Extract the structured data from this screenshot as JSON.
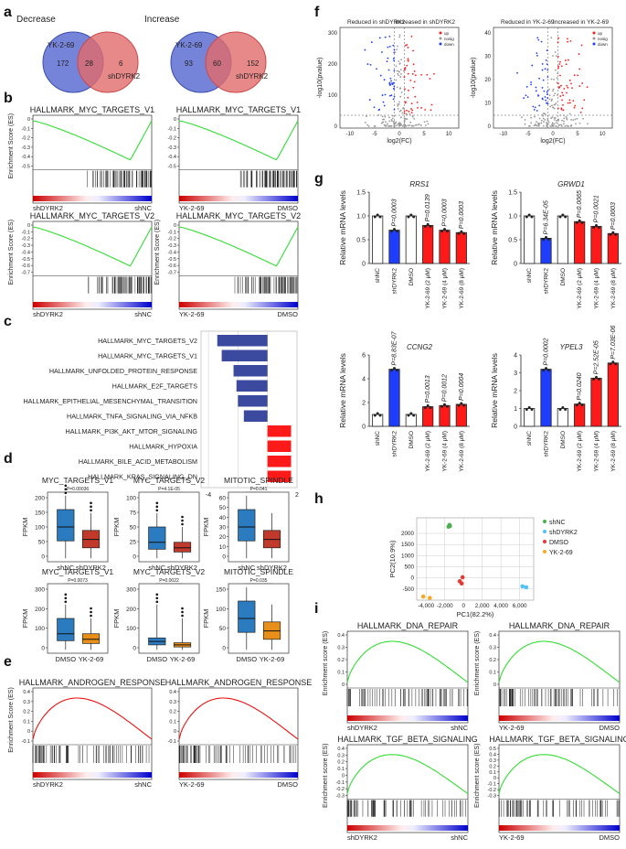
{
  "panel_labels": [
    "a",
    "b",
    "c",
    "d",
    "e",
    "f",
    "g",
    "h",
    "i"
  ],
  "venn": [
    {
      "title": "Decrease",
      "left_label": "YK-2-69",
      "right_label": "shDYRK2",
      "left_only": "172",
      "overlap": "28",
      "right_only": "6"
    },
    {
      "title": "Increase",
      "left_label": "YK-2-69",
      "right_label": "shDYRK2",
      "left_only": "93",
      "overlap": "60",
      "right_only": "152"
    }
  ],
  "gsea_b": [
    {
      "title": "HALLMARK_MYC_TARGETS_V1",
      "left": "shDYRK2",
      "right": "shNC",
      "ylabel": "Enrichment Score (ES)",
      "ticks": [
        "0",
        "-0.1",
        "-0.2",
        "-0.3",
        "-0.4",
        "-0.5"
      ]
    },
    {
      "title": "HALLMARK_MYC_TARGETS_V1",
      "left": "YK-2-69",
      "right": "DMSO",
      "ylabel": "",
      "ticks": [
        "0",
        "-0.1",
        "-0.2",
        "-0.3",
        "-0.4",
        "-0.5"
      ]
    },
    {
      "title": "HALLMARK_MYC_TARGETS_V2",
      "left": "shDYRK2",
      "right": "shNC",
      "ylabel": "Enrichment Score (ES)",
      "ticks": [
        "0",
        "-0.1",
        "-0.2",
        "-0.3",
        "-0.4",
        "-0.5",
        "-0.6",
        "-0.7"
      ]
    },
    {
      "title": "HALLMARK_MYC_TARGETS_V2",
      "left": "YK-2-69",
      "right": "DMSO",
      "ylabel": "Enrichment Score (ES)",
      "ticks": [
        "0",
        "-0.1",
        "-0.2",
        "-0.3",
        "-0.4",
        "-0.5",
        "-0.6",
        "-0.7"
      ]
    }
  ],
  "nes_chart": {
    "xlabel": "NES",
    "xticks": [
      "-4",
      "-2",
      "0",
      "2"
    ],
    "bars": [
      {
        "label": "HALLMARK_MYC_TARGETS_V2",
        "value": -3.4
      },
      {
        "label": "HALLMARK_MYC_TARGETS_V1",
        "value": -3.1
      },
      {
        "label": "HALLMARK_UNFOLDED_PROTEIN_RESPONSE",
        "value": -2.3
      },
      {
        "label": "HALLMARK_E2F_TARGETS",
        "value": -2.1
      },
      {
        "label": "HALLMARK_EPITHELIAL_MESENCHYMAL_TRANSITION",
        "value": -2.0
      },
      {
        "label": "HALLMARK_TNFA_SIGNALING_VIA_NFKB",
        "value": -1.6
      },
      {
        "label": "HALLMARK_PI3K_AKT_MTOR_SIGNALING",
        "value": 1.6
      },
      {
        "label": "HALLMARK_HYPOXIA",
        "value": 1.6
      },
      {
        "label": "HALLMARK_BILE_ACID_METABOLISM",
        "value": 1.6
      },
      {
        "label": "HALLMARK_KRAS_SIGNALING_DN",
        "value": 1.6
      }
    ]
  },
  "boxplots": [
    {
      "title": "MYC_TARGETS_V1",
      "p": "P=0.00036",
      "a": "shNC",
      "b": "shDYRK2",
      "ticks": [
        "0",
        "50",
        "100",
        "150",
        "200"
      ]
    },
    {
      "title": "MYC_TARGETS_V2",
      "p": "P=4.1E-05",
      "a": "shNC",
      "b": "shDYRK2",
      "ticks": [
        "0",
        "25",
        "50",
        "75",
        "100"
      ]
    },
    {
      "title": "MITOTIC_SPINDLE",
      "p": "P=0.041",
      "a": "shNC",
      "b": "shDYRK2",
      "ticks": [
        "0",
        "10",
        "20",
        "30",
        "40",
        "50",
        "60"
      ]
    },
    {
      "title": "MYC_TARGETS_V1",
      "p": "P=0.0073",
      "a": "DMSO",
      "b": "YK-2-69",
      "ticks": [
        "0",
        "100",
        "200",
        "300"
      ]
    },
    {
      "title": "MYC_TARGETS_V2",
      "p": "P=0.0022",
      "a": "DMSO",
      "b": "YK-2-69",
      "ticks": [
        "0",
        "100",
        "200",
        "300"
      ]
    },
    {
      "title": "MITOTIC_SPINDLE",
      "p": "P=0.035",
      "a": "DMSO",
      "b": "YK-2-69",
      "ticks": [
        "0",
        "50",
        "100",
        "150"
      ]
    }
  ],
  "fpkm_label": "FPKM",
  "gsea_e": [
    {
      "title": "HALLMARK_ANDROGEN_RESPONSE",
      "left": "shDYRK2",
      "right": "shNC",
      "ylabel": "Enrichment Score (ES)",
      "ticks": [
        "0.4",
        "0.3",
        "0.2",
        "0.1",
        "0",
        "-0.1"
      ]
    },
    {
      "title": "HALLMARK_ANDROGEN_RESPONSE",
      "left": "YK-2-69",
      "right": "DMSO",
      "ylabel": "",
      "ticks": [
        "0.4",
        "0.3",
        "0.2",
        "0.1",
        "0",
        "-0.1"
      ]
    }
  ],
  "volcano": [
    {
      "reduced": "Reduced in shDYRK2",
      "increased": "Increased in shDYRK2",
      "yticks": [
        "0",
        "100",
        "200",
        "300"
      ],
      "xticks": [
        "-10",
        "-5",
        "0",
        "5",
        "10"
      ],
      "legend": [
        "up",
        "nosig",
        "down"
      ]
    },
    {
      "reduced": "Reduced in YK-2-69",
      "increased": "Increased in YK-2-69",
      "yticks": [
        "0",
        "10",
        "20",
        "30",
        "40"
      ],
      "xticks": [
        "-10",
        "-5",
        "0",
        "5",
        "10"
      ],
      "legend": [
        "up",
        "nosig",
        "down"
      ]
    }
  ],
  "volcano_xlabel": "log2(FC)",
  "volcano_ylabel": "-log10(pvalue)",
  "qpcr_categories": [
    "shNC",
    "shDYRK2",
    "DMSO",
    "YK-2-69 (2 μM)",
    "YK-2-69 (4 μM)",
    "YK-2-69 (8 μM)"
  ],
  "qpcr_ylabel": "Relative mRNA levels",
  "chart_data": [
    {
      "type": "bar",
      "title": "RRS1",
      "categories": [
        "shNC",
        "shDYRK2",
        "DMSO",
        "YK-2-69 (2 μM)",
        "YK-2-69 (4 μM)",
        "YK-2-69 (8 μM)"
      ],
      "values": [
        1.0,
        0.7,
        1.0,
        0.8,
        0.7,
        0.65
      ],
      "ylim": [
        0,
        1.5
      ],
      "yticks": [
        "0",
        "0.5",
        "1.0",
        "1.5"
      ],
      "pvalues": [
        "",
        "P=0.0003",
        "",
        "P=0.0139",
        "P=0.0003",
        "P=0.0003"
      ]
    },
    {
      "type": "bar",
      "title": "GRWD1",
      "categories": [
        "shNC",
        "shDYRK2",
        "DMSO",
        "YK-2-69 (2 μM)",
        "YK-2-69 (4 μM)",
        "YK-2-69 (8 μM)"
      ],
      "values": [
        1.0,
        0.53,
        1.0,
        0.88,
        0.78,
        0.63
      ],
      "ylim": [
        0,
        1.5
      ],
      "yticks": [
        "0",
        "0.5",
        "1.0",
        "1.5"
      ],
      "pvalues": [
        "",
        "P=6.34E-05",
        "",
        "P=0.0065",
        "P=0.0021",
        "P=0.0003"
      ]
    },
    {
      "type": "bar",
      "title": "CCNG2",
      "categories": [
        "shNC",
        "shDYRK2",
        "DMSO",
        "YK-2-69 (2 μM)",
        "YK-2-69 (4 μM)",
        "YK-2-69 (8 μM)"
      ],
      "values": [
        1.0,
        4.8,
        1.0,
        1.65,
        1.75,
        1.85
      ],
      "ylim": [
        0,
        6
      ],
      "yticks": [
        "0",
        "2",
        "4",
        "6"
      ],
      "pvalues": [
        "",
        "P=8.83E-07",
        "",
        "P=0.0013",
        "P=0.0012",
        "P=0.0004"
      ]
    },
    {
      "type": "bar",
      "title": "YPEL3",
      "categories": [
        "shNC",
        "shDYRK2",
        "DMSO",
        "YK-2-69 (2 μM)",
        "YK-2-69 (4 μM)",
        "YK-2-69 (8 μM)"
      ],
      "values": [
        1.0,
        3.2,
        1.0,
        1.25,
        2.7,
        3.55
      ],
      "ylim": [
        0,
        4
      ],
      "yticks": [
        "0",
        "1",
        "2",
        "3",
        "4"
      ],
      "pvalues": [
        "",
        "P=0.0002",
        "",
        "P=0.0240",
        "P=2.52E-05",
        "P=7.03E-06"
      ]
    },
    {
      "type": "scatter",
      "title": "PCA",
      "xlabel": "PC1(82.2%)",
      "ylabel": "PC2(10.9%)",
      "xticks": [
        "-4,000",
        "-2,000",
        "0",
        "2,000",
        "4,000",
        "6,000"
      ],
      "yticks": [
        "-500",
        "0",
        "500",
        "1000",
        "1500",
        "2000"
      ],
      "series": [
        {
          "name": "shNC",
          "color": "#4caf50",
          "points": [
            [
              -1600,
              2300
            ],
            [
              -1500,
              2380
            ],
            [
              -1450,
              2330
            ]
          ]
        },
        {
          "name": "shDYRK2",
          "color": "#4fc3f7",
          "points": [
            [
              6300,
              -380
            ],
            [
              6700,
              -420
            ]
          ]
        },
        {
          "name": "DMSO",
          "color": "#e53935",
          "points": [
            [
              -400,
              -150
            ],
            [
              -200,
              -250
            ],
            [
              -100,
              30
            ]
          ]
        },
        {
          "name": "YK-2-69",
          "color": "#f9a825",
          "points": [
            [
              -4300,
              -840
            ],
            [
              -3600,
              -900
            ]
          ]
        }
      ]
    }
  ],
  "gsea_i": [
    {
      "title": "HALLMARK_DNA_REPAIR",
      "left": "shDYRK2",
      "right": "shNC",
      "ylabel": "Enrichment score (ES)",
      "ticks": [
        "0.4",
        "0.3",
        "0.2",
        "0.1",
        "0"
      ]
    },
    {
      "title": "HALLMARK_DNA_REPAIR",
      "left": "YK-2-69",
      "right": "DMSO",
      "ylabel": "Enrichment score (ES)",
      "ticks": [
        "0.4",
        "0.3",
        "0.2",
        "0.1",
        "0"
      ]
    },
    {
      "title": "HALLMARK_TGF_BETA_SIGNALING",
      "left": "shDYRK2",
      "right": "shNC",
      "ylabel": "Enrichment score (ES)",
      "ticks": [
        "0.4",
        "0.3",
        "0.2",
        "0.1",
        "0",
        "-0.1",
        "-0.2",
        "-0.3"
      ]
    },
    {
      "title": "HALLMARK_TGF_BETA_SIGNALING",
      "left": "YK-2-69",
      "right": "DMSO",
      "ylabel": "Enrichment score (ES)",
      "ticks": [
        "0.5",
        "0.4",
        "0.3",
        "0.2",
        "0.1",
        "0",
        "-0.1",
        "-0.2",
        "-0.3"
      ]
    }
  ],
  "colors": {
    "blue": "#1f3dff",
    "red": "#ff1a1a",
    "gseaGreen": "#33dd33",
    "gseaRed": "#ee1111",
    "boxBlue": "#2a7bbf",
    "boxRed": "#c0392b",
    "boxOrange": "#e88f1a",
    "vennBlue": "#5d6fd1",
    "vennRed": "#e26b6b"
  }
}
